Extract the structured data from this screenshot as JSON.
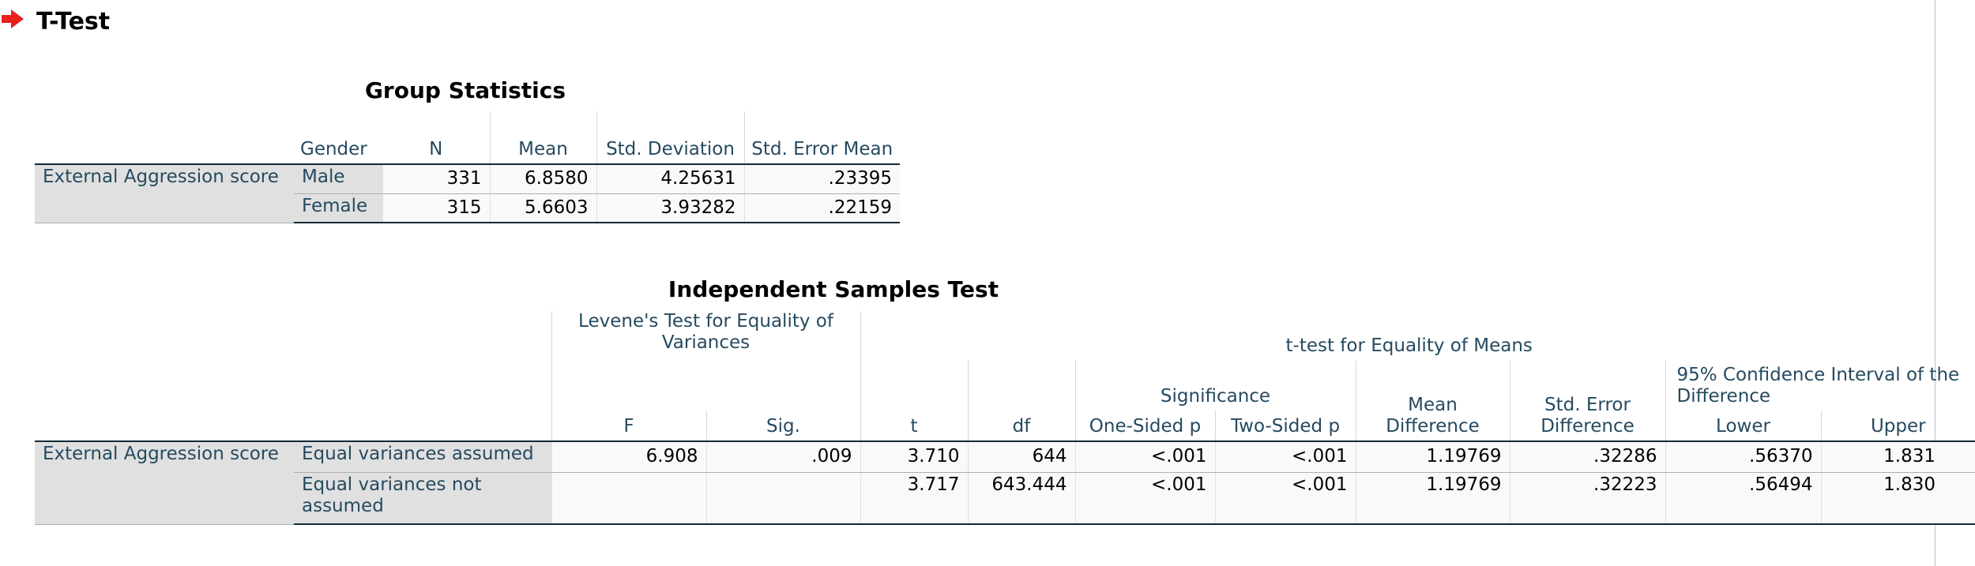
{
  "header": {
    "title": "T-Test"
  },
  "group_statistics": {
    "title": "Group Statistics",
    "columns": [
      "Gender",
      "N",
      "Mean",
      "Std. Deviation",
      "Std. Error Mean"
    ],
    "row_label": "External Aggression score",
    "rows": [
      [
        "Male",
        "331",
        "6.8580",
        "4.25631",
        ".23395"
      ],
      [
        "Female",
        "315",
        "5.6603",
        "3.93282",
        ".22159"
      ]
    ]
  },
  "independent_samples_test": {
    "title": "Independent Samples Test",
    "levene_header": "Levene's Test for Equality of Variances",
    "ttest_header": "t-test for Equality of Means",
    "significance_header": "Significance",
    "mean_difference_header": "Mean Difference",
    "std_error_difference_header": "Std. Error Difference",
    "ci_header": "95% Confidence Interval of the Difference",
    "columns": [
      "F",
      "Sig.",
      "t",
      "df",
      "One-Sided p",
      "Two-Sided p",
      "Lower",
      "Upper"
    ],
    "row_label": "External Aggression score",
    "rows": [
      {
        "label": "Equal variances assumed",
        "values": [
          "6.908",
          ".009",
          "3.710",
          "644",
          "<.001",
          "<.001",
          "1.19769",
          ".32286",
          ".56370",
          "1.831"
        ]
      },
      {
        "label": "Equal variances not assumed",
        "values": [
          null,
          null,
          "3.717",
          "643.444",
          "<.001",
          "<.001",
          "1.19769",
          ".32223",
          ".56494",
          "1.830"
        ]
      }
    ]
  }
}
